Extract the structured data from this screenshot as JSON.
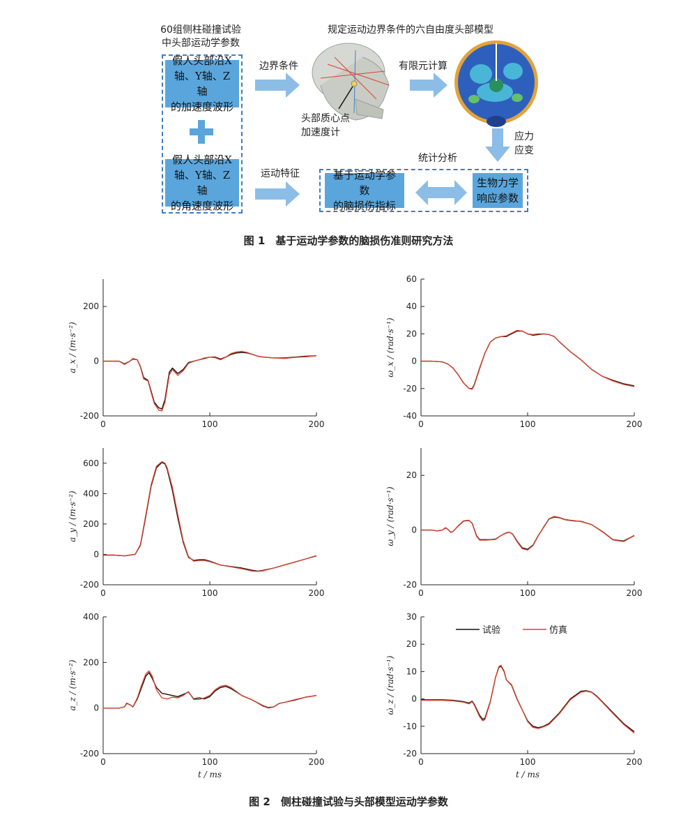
{
  "figure1": {
    "left_title": "60组侧柱碰撞试验\n中头部运动学参数",
    "top_title": "规定运动边界条件的六自由度头部模型",
    "box_linear": "假人头部沿X\n轴、Y轴、Z轴\n的加速度波形",
    "box_angular": "假人头部沿X\n轴、Y轴、Z轴\n的角速度波形",
    "plus": "+",
    "arrow_boundary": "边界条件",
    "arrow_fem": "有限元计算",
    "accel_label": "头部质心点\n加速度计",
    "stress_label": "应力\n应变",
    "stats_label": "统计分析",
    "arrow_motion": "运动特征",
    "box_injury": "基于运动学参数\n的脑损伤指标",
    "box_bio": "生物力学\n响应参数",
    "caption": "图 1　基于运动学参数的脑损伤准则研究方法"
  },
  "figure2": {
    "caption": "图 2　侧柱碰撞试验与头部模型运动学参数",
    "legend": [
      {
        "name": "试验",
        "color": "#111111"
      },
      {
        "name": "仿真",
        "color": "#d9442e"
      }
    ]
  },
  "chart_data": [
    {
      "type": "line",
      "id": "ax",
      "ylabel": "a_x / (m·s⁻²)",
      "xlabel": "",
      "xlim": [
        0,
        200
      ],
      "ylim": [
        -200,
        300
      ],
      "xticks": [
        0,
        100,
        200
      ],
      "yticks": [
        -200,
        0,
        200
      ],
      "series": [
        {
          "name": "试验",
          "x": [
            0,
            15,
            20,
            25,
            28,
            32,
            35,
            38,
            42,
            45,
            48,
            52,
            55,
            58,
            62,
            65,
            70,
            75,
            80,
            85,
            90,
            95,
            100,
            105,
            110,
            115,
            120,
            125,
            130,
            135,
            140,
            145,
            150,
            160,
            170,
            180,
            190,
            200
          ],
          "y": [
            0,
            0,
            -10,
            0,
            8,
            5,
            -20,
            -60,
            -70,
            -110,
            -150,
            -170,
            -175,
            -140,
            -40,
            -25,
            -45,
            -30,
            -5,
            0,
            5,
            10,
            15,
            15,
            8,
            15,
            25,
            30,
            32,
            30,
            25,
            18,
            15,
            12,
            12,
            15,
            18,
            20
          ]
        },
        {
          "name": "仿真",
          "x": [
            0,
            15,
            20,
            25,
            28,
            32,
            35,
            38,
            42,
            45,
            48,
            52,
            55,
            58,
            62,
            65,
            70,
            75,
            80,
            85,
            90,
            95,
            100,
            105,
            110,
            115,
            120,
            125,
            130,
            135,
            140,
            145,
            150,
            160,
            170,
            180,
            190,
            200
          ],
          "y": [
            0,
            0,
            -12,
            0,
            10,
            5,
            -22,
            -65,
            -72,
            -115,
            -155,
            -178,
            -182,
            -150,
            -50,
            -30,
            -52,
            -35,
            -8,
            0,
            5,
            12,
            15,
            13,
            5,
            15,
            28,
            34,
            36,
            32,
            25,
            18,
            15,
            12,
            10,
            14,
            16,
            20
          ]
        }
      ]
    },
    {
      "type": "line",
      "id": "wx",
      "ylabel": "ω_x / (rad·s⁻¹)",
      "xlabel": "",
      "xlim": [
        0,
        200
      ],
      "ylim": [
        -40,
        60
      ],
      "xticks": [
        0,
        100,
        200
      ],
      "yticks": [
        -40,
        -20,
        0,
        20,
        40,
        60
      ],
      "series": [
        {
          "name": "试验",
          "x": [
            0,
            10,
            20,
            25,
            30,
            35,
            40,
            45,
            48,
            50,
            55,
            60,
            65,
            70,
            75,
            80,
            85,
            90,
            95,
            100,
            105,
            110,
            115,
            120,
            125,
            130,
            140,
            150,
            160,
            170,
            180,
            190,
            200
          ],
          "y": [
            0,
            0,
            -0.5,
            -2,
            -5,
            -10,
            -16,
            -20,
            -20,
            -17,
            -5,
            6,
            14,
            17,
            18,
            18,
            20,
            22,
            22,
            20,
            19,
            19.5,
            20,
            19.5,
            18,
            14,
            7,
            1,
            -6,
            -11,
            -14,
            -16.5,
            -18
          ]
        },
        {
          "name": "仿真",
          "x": [
            0,
            10,
            20,
            25,
            30,
            35,
            40,
            45,
            48,
            50,
            55,
            60,
            65,
            70,
            75,
            80,
            85,
            90,
            95,
            100,
            105,
            110,
            115,
            120,
            125,
            130,
            140,
            150,
            160,
            170,
            180,
            190,
            200
          ],
          "y": [
            0,
            0,
            -0.5,
            -2,
            -5,
            -10,
            -16,
            -20,
            -20.5,
            -17.5,
            -5.5,
            6,
            14,
            17,
            18,
            18.5,
            20.5,
            22.5,
            22,
            20,
            19.5,
            20,
            20,
            19.5,
            18,
            14,
            7,
            1,
            -6,
            -11,
            -14.5,
            -17,
            -18.5
          ]
        }
      ]
    },
    {
      "type": "line",
      "id": "ay",
      "ylabel": "a_y / (m·s⁻²)",
      "xlabel": "",
      "xlim": [
        0,
        200
      ],
      "ylim": [
        -200,
        700
      ],
      "xticks": [
        0,
        100,
        200
      ],
      "yticks": [
        -200,
        0,
        200,
        400,
        600
      ],
      "series": [
        {
          "name": "试验",
          "x": [
            0,
            10,
            20,
            25,
            30,
            35,
            40,
            45,
            50,
            55,
            58,
            60,
            65,
            70,
            75,
            80,
            85,
            90,
            95,
            100,
            110,
            120,
            130,
            140,
            145,
            150,
            160,
            170,
            180,
            190,
            200
          ],
          "y": [
            -5,
            -5,
            -10,
            -5,
            0,
            60,
            250,
            450,
            570,
            605,
            595,
            560,
            420,
            240,
            80,
            -20,
            -40,
            -35,
            -35,
            -45,
            -70,
            -80,
            -90,
            -105,
            -110,
            -105,
            -90,
            -70,
            -50,
            -30,
            -10
          ]
        },
        {
          "name": "仿真",
          "x": [
            0,
            10,
            20,
            25,
            30,
            35,
            40,
            45,
            50,
            55,
            58,
            60,
            65,
            70,
            75,
            80,
            85,
            90,
            95,
            100,
            110,
            120,
            130,
            140,
            145,
            150,
            160,
            170,
            180,
            190,
            200
          ],
          "y": [
            -5,
            -5,
            -10,
            -5,
            0,
            65,
            260,
            460,
            580,
            610,
            600,
            570,
            440,
            260,
            90,
            -15,
            -45,
            -40,
            -40,
            -48,
            -70,
            -82,
            -95,
            -110,
            -112,
            -108,
            -90,
            -70,
            -50,
            -30,
            -8
          ]
        }
      ]
    },
    {
      "type": "line",
      "id": "wy",
      "ylabel": "ω_y / (rad·s⁻¹)",
      "xlabel": "",
      "xlim": [
        0,
        200
      ],
      "ylim": [
        -20,
        30
      ],
      "xticks": [
        0,
        100,
        200
      ],
      "yticks": [
        -20,
        0,
        20
      ],
      "series": [
        {
          "name": "试验",
          "x": [
            0,
            10,
            15,
            20,
            23,
            25,
            28,
            30,
            35,
            40,
            45,
            48,
            52,
            55,
            60,
            65,
            70,
            75,
            80,
            83,
            86,
            90,
            95,
            100,
            105,
            110,
            115,
            120,
            125,
            130,
            135,
            140,
            145,
            150,
            160,
            170,
            180,
            190,
            195,
            200
          ],
          "y": [
            0,
            0,
            -0.3,
            0,
            0.8,
            0.3,
            -0.8,
            -0.5,
            1.5,
            3.3,
            3.5,
            2.5,
            -2,
            -3.5,
            -3.5,
            -3.5,
            -3.3,
            -2,
            -1,
            -0.8,
            -1.5,
            -4,
            -6.5,
            -7,
            -5.5,
            -2,
            1,
            4,
            4.8,
            4.5,
            3.8,
            3.5,
            3.3,
            3.2,
            2,
            -0.5,
            -3.5,
            -4,
            -3,
            -2
          ]
        },
        {
          "name": "仿真",
          "x": [
            0,
            10,
            15,
            20,
            23,
            25,
            28,
            30,
            35,
            40,
            45,
            48,
            52,
            55,
            60,
            65,
            70,
            75,
            80,
            83,
            86,
            90,
            95,
            100,
            105,
            110,
            115,
            120,
            125,
            130,
            135,
            140,
            145,
            150,
            160,
            170,
            180,
            190,
            195,
            200
          ],
          "y": [
            0,
            0,
            -0.3,
            0,
            0.9,
            0.3,
            -0.9,
            -0.5,
            1.6,
            3.4,
            3.6,
            2.4,
            -2.2,
            -3.7,
            -3.7,
            -3.6,
            -3.4,
            -2,
            -1.1,
            -0.8,
            -1.6,
            -4.2,
            -6.8,
            -7.3,
            -5.7,
            -2.1,
            1.1,
            4.1,
            5,
            4.6,
            3.9,
            3.6,
            3.4,
            3.1,
            2,
            -0.6,
            -3.6,
            -4.2,
            -3.1,
            -2.1
          ]
        }
      ]
    },
    {
      "type": "line",
      "id": "az",
      "ylabel": "a_z / (m·s⁻²)",
      "xlabel": "t / ms",
      "xlim": [
        0,
        200
      ],
      "ylim": [
        -200,
        400
      ],
      "xticks": [
        0,
        100,
        200
      ],
      "yticks": [
        -200,
        0,
        200,
        400
      ],
      "series": [
        {
          "name": "试验",
          "x": [
            0,
            15,
            20,
            22,
            25,
            28,
            32,
            36,
            40,
            43,
            46,
            50,
            55,
            60,
            65,
            70,
            75,
            80,
            85,
            90,
            95,
            100,
            105,
            110,
            115,
            120,
            125,
            130,
            140,
            150,
            155,
            160,
            165,
            170,
            180,
            190,
            200
          ],
          "y": [
            0,
            0,
            5,
            20,
            15,
            5,
            40,
            90,
            140,
            155,
            130,
            90,
            65,
            60,
            55,
            50,
            60,
            70,
            40,
            45,
            40,
            50,
            75,
            90,
            95,
            85,
            70,
            55,
            35,
            10,
            2,
            5,
            20,
            25,
            35,
            48,
            55
          ]
        },
        {
          "name": "仿真",
          "x": [
            0,
            15,
            20,
            22,
            25,
            28,
            32,
            36,
            40,
            43,
            46,
            50,
            55,
            60,
            65,
            70,
            75,
            80,
            85,
            90,
            95,
            100,
            105,
            110,
            115,
            120,
            125,
            130,
            140,
            150,
            155,
            160,
            165,
            170,
            180,
            190,
            200
          ],
          "y": [
            0,
            0,
            5,
            22,
            15,
            5,
            45,
            100,
            150,
            163,
            140,
            80,
            45,
            40,
            48,
            45,
            55,
            72,
            38,
            38,
            45,
            55,
            80,
            95,
            100,
            90,
            72,
            55,
            35,
            8,
            0,
            5,
            20,
            25,
            37,
            48,
            55
          ]
        }
      ]
    },
    {
      "type": "line",
      "id": "wz",
      "ylabel": "ω̇_z / (rad·s⁻¹)",
      "xlabel": "t / ms",
      "xlim": [
        0,
        200
      ],
      "ylim": [
        -20,
        30
      ],
      "xticks": [
        0,
        100,
        200
      ],
      "yticks": [
        -20,
        -10,
        0,
        10,
        20,
        30
      ],
      "series": [
        {
          "name": "试验",
          "x": [
            0,
            10,
            20,
            30,
            40,
            45,
            48,
            50,
            55,
            58,
            60,
            65,
            70,
            73,
            75,
            78,
            80,
            85,
            90,
            95,
            100,
            105,
            110,
            115,
            120,
            130,
            140,
            150,
            155,
            160,
            165,
            170,
            180,
            190,
            200
          ],
          "y": [
            -0.3,
            -0.3,
            -0.3,
            -0.5,
            -1,
            -1.5,
            -0.8,
            -2,
            -6,
            -7.5,
            -7,
            -1,
            8,
            11.5,
            12,
            10,
            7,
            5,
            0,
            -4,
            -8,
            -10,
            -10.5,
            -10,
            -9,
            -5,
            0,
            2.8,
            3,
            2.5,
            1,
            -1,
            -5,
            -9,
            -12
          ]
        },
        {
          "name": "仿真",
          "x": [
            0,
            10,
            20,
            30,
            40,
            45,
            48,
            50,
            55,
            58,
            60,
            65,
            70,
            73,
            75,
            78,
            80,
            85,
            90,
            95,
            100,
            105,
            110,
            115,
            120,
            130,
            140,
            150,
            155,
            160,
            165,
            170,
            180,
            190,
            200
          ],
          "y": [
            -0.5,
            -0.5,
            -0.5,
            -0.7,
            -1.2,
            -1.8,
            -1,
            -2.3,
            -6.5,
            -8,
            -7.5,
            -1.2,
            8,
            11.8,
            12.3,
            10.2,
            7,
            5.2,
            0.2,
            -4,
            -8.3,
            -10.4,
            -10.8,
            -10.2,
            -9.3,
            -5.3,
            -0.3,
            2.5,
            2.8,
            2.4,
            0.8,
            -1.2,
            -5.3,
            -9.3,
            -12.5
          ]
        }
      ]
    }
  ]
}
